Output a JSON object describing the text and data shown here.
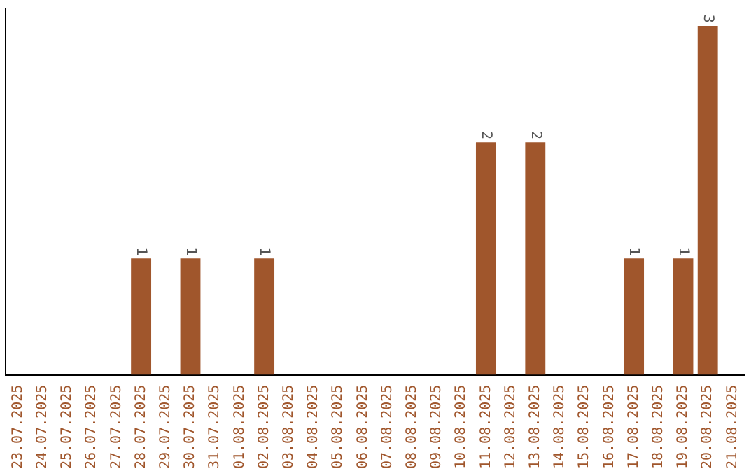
{
  "chart_data": {
    "type": "bar",
    "categories": [
      "23.07.2025",
      "24.07.2025",
      "25.07.2025",
      "26.07.2025",
      "27.07.2025",
      "28.07.2025",
      "29.07.2025",
      "30.07.2025",
      "31.07.2025",
      "01.08.2025",
      "02.08.2025",
      "03.08.2025",
      "04.08.2025",
      "05.08.2025",
      "06.08.2025",
      "07.08.2025",
      "08.08.2025",
      "09.08.2025",
      "10.08.2025",
      "11.08.2025",
      "12.08.2025",
      "13.08.2025",
      "14.08.2025",
      "15.08.2025",
      "16.08.2025",
      "17.08.2025",
      "18.08.2025",
      "19.08.2025",
      "20.08.2025",
      "21.08.2025"
    ],
    "values": [
      null,
      null,
      null,
      null,
      null,
      1,
      null,
      1,
      null,
      null,
      1,
      null,
      null,
      null,
      null,
      null,
      null,
      null,
      null,
      2,
      null,
      2,
      null,
      null,
      null,
      1,
      null,
      1,
      3,
      null
    ],
    "color": "#a0562c",
    "ylim": [
      0,
      3.15
    ],
    "data_labels": true,
    "grid": false,
    "legend": false,
    "tick_labels": "x"
  }
}
